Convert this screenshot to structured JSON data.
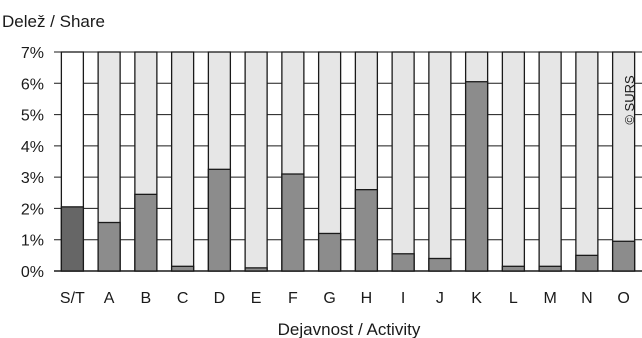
{
  "chart_data": {
    "type": "bar",
    "title": "",
    "ylabel": "Delež / Share",
    "xlabel": "Dejavnost / Activity",
    "watermark": "© SURS",
    "categories": [
      "S/T",
      "A",
      "B",
      "C",
      "D",
      "E",
      "F",
      "G",
      "H",
      "I",
      "J",
      "K",
      "L",
      "M",
      "N",
      "O"
    ],
    "values": [
      2.05,
      1.55,
      2.45,
      0.15,
      3.25,
      0.1,
      3.1,
      1.2,
      2.6,
      0.55,
      0.4,
      6.05,
      0.15,
      0.15,
      0.5,
      0.95
    ],
    "ylim": [
      0,
      7
    ],
    "yticks": [
      "0%",
      "1%",
      "2%",
      "3%",
      "4%",
      "5%",
      "6%",
      "7%"
    ],
    "grid": true,
    "colors": {
      "total_bar": "#666666",
      "bar": "#8c8c8c",
      "background_bar": "#e6e6e6",
      "total_background_bar": "#ffffff",
      "grid": "#1a1a1a",
      "outline": "#1a1a1a"
    }
  }
}
